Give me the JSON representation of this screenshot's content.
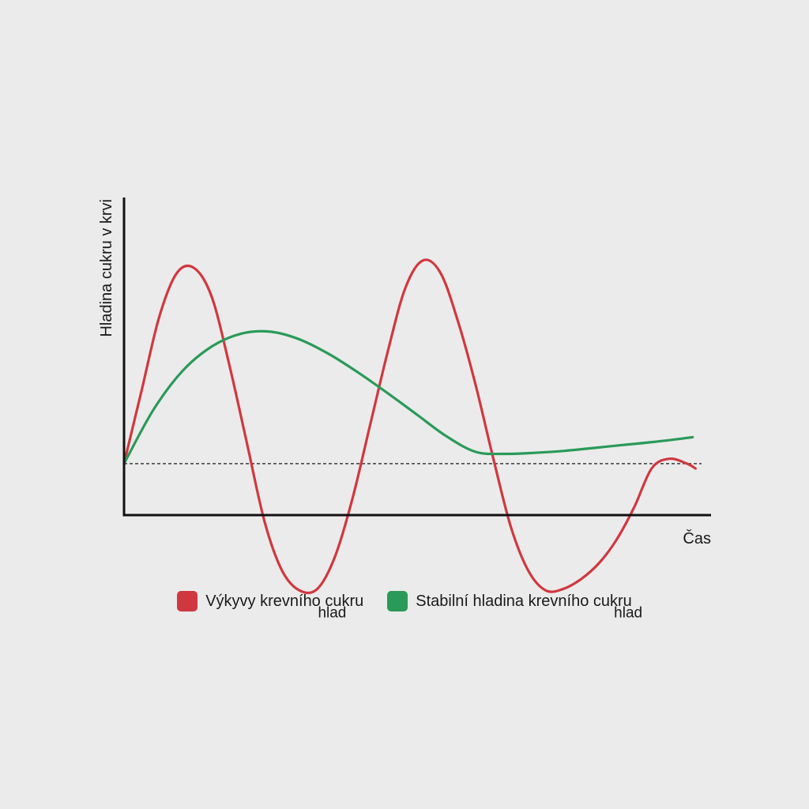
{
  "chart_data": {
    "type": "line",
    "title": "",
    "xlabel": "Čas",
    "ylabel": "Hladina cukru v krvi",
    "x_ticks": [],
    "y_ticks": [],
    "grid": false,
    "baseline": {
      "y": 0,
      "style": "dashed",
      "color": "#1a1a1a"
    },
    "xlim": [
      0,
      10
    ],
    "ylim": [
      -1.4,
      2.4
    ],
    "series": [
      {
        "name": "Výkyvy krevního cukru",
        "color": "#d0383f",
        "x": [
          0,
          0.3,
          0.6,
          0.9,
          1.2,
          1.5,
          1.8,
          2.1,
          2.4,
          2.7,
          3.0,
          3.3,
          3.6,
          3.9,
          4.2,
          4.5,
          4.8,
          5.1,
          5.4,
          5.7,
          6.0,
          6.3,
          6.6,
          6.9,
          7.2,
          7.5,
          7.8,
          8.1,
          8.4,
          8.7,
          9.0,
          9.3,
          9.6,
          9.75
        ],
        "y": [
          0,
          0.75,
          1.5,
          1.95,
          2.0,
          1.7,
          1.0,
          0.2,
          -0.6,
          -1.1,
          -1.3,
          -1.28,
          -0.95,
          -0.35,
          0.4,
          1.15,
          1.8,
          2.08,
          1.95,
          1.45,
          0.8,
          0.05,
          -0.65,
          -1.1,
          -1.3,
          -1.28,
          -1.18,
          -1.02,
          -0.78,
          -0.45,
          -0.05,
          0.05,
          0,
          -0.05
        ]
      },
      {
        "name": "Stabilní hladina krevního cukru",
        "color": "#2a9a58",
        "x": [
          0,
          0.5,
          1.0,
          1.5,
          2.0,
          2.5,
          3.0,
          3.5,
          4.0,
          4.5,
          5.0,
          5.5,
          6.0,
          6.5,
          7.0,
          7.5,
          8.0,
          8.5,
          9.0,
          9.7
        ],
        "y": [
          0,
          0.55,
          0.95,
          1.2,
          1.33,
          1.35,
          1.27,
          1.12,
          0.93,
          0.72,
          0.5,
          0.28,
          0.12,
          0.1,
          0.11,
          0.13,
          0.16,
          0.19,
          0.22,
          0.27
        ]
      }
    ],
    "annotations": [
      {
        "text": "hlad",
        "x": 3.55,
        "y": -1.3
      },
      {
        "text": "hlad",
        "x": 8.6,
        "y": -1.3
      }
    ],
    "legend_placement": "bottom-center"
  }
}
